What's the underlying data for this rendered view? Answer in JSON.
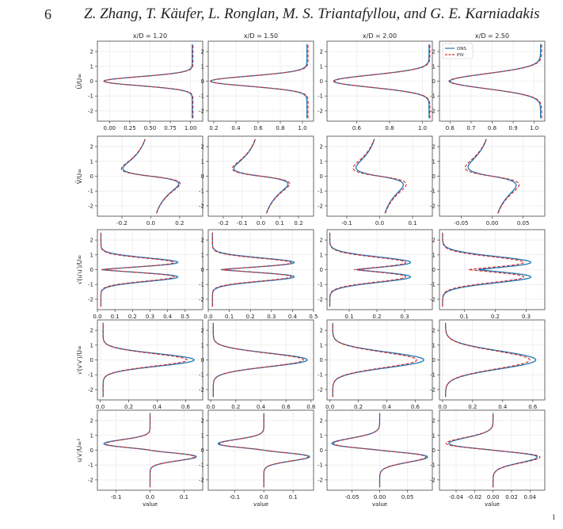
{
  "header": {
    "page_number": "6",
    "running_head": "Z. Zhang, T. Käufer, L. Ronglan, M. S. Triantafyllou, and G. E. Karniadakis",
    "corner_mark": "1"
  },
  "chart_data": {
    "type": "line",
    "layout": "5 rows x 4 columns of small-multiple line plots; the profile variable is plotted on the horizontal axis against y/D on the vertical axis",
    "column_titles": [
      "x/D = 1.20",
      "x/D = 1.50",
      "x/D = 2.00",
      "x/D = 2.50"
    ],
    "row_ylabels": [
      "Ū/U∞",
      "V̄/U∞",
      "√(u′u′)/U∞",
      "√(v′v′)/U∞",
      "u′v′/U∞²"
    ],
    "xlabel_bottom": "value",
    "ylim": [
      -2.7,
      2.7
    ],
    "yticks": [
      -2,
      -1,
      0,
      1,
      2
    ],
    "legend": {
      "panel": "row1-col4",
      "placement": "top-left",
      "entries": [
        {
          "name": "DNS",
          "color": "#1f77b4",
          "style": "solid"
        },
        {
          "name": "PIV",
          "color": "#d62728",
          "style": "dashed"
        }
      ]
    },
    "grid": true,
    "series_colors": {
      "DNS": "#1f77b4",
      "PIV": "#d62728"
    },
    "panels": [
      {
        "row": 1,
        "col": 1,
        "shape": "wake_mean_u",
        "xlim": [
          -0.15,
          1.15
        ],
        "xticks": [
          "0.00",
          "0.25",
          "0.50",
          "0.75",
          "1.00"
        ],
        "xtick_values": [
          0,
          0.25,
          0.5,
          0.75,
          1.0
        ],
        "DNS": {
          "base": 1.02,
          "amp": 1.09,
          "width": 0.3
        },
        "PIV": {
          "base": 1.03,
          "amp": 1.1,
          "width": 0.3
        }
      },
      {
        "row": 1,
        "col": 2,
        "shape": "wake_mean_u",
        "xlim": [
          0.15,
          1.1
        ],
        "xticks": [
          "0.2",
          "0.4",
          "0.6",
          "0.8",
          "1.0"
        ],
        "xtick_values": [
          0.2,
          0.4,
          0.6,
          0.8,
          1.0
        ],
        "DNS": {
          "base": 1.04,
          "amp": 0.87,
          "width": 0.34
        },
        "PIV": {
          "base": 1.05,
          "amp": 0.88,
          "width": 0.34
        }
      },
      {
        "row": 1,
        "col": 3,
        "shape": "wake_mean_u",
        "xlim": [
          0.42,
          1.06
        ],
        "xticks": [
          "0.6",
          "0.8",
          "1.0"
        ],
        "xtick_values": [
          0.6,
          0.8,
          1.0
        ],
        "DNS": {
          "base": 1.04,
          "amp": 0.58,
          "width": 0.42
        },
        "PIV": {
          "base": 1.045,
          "amp": 0.58,
          "width": 0.42
        }
      },
      {
        "row": 1,
        "col": 4,
        "shape": "wake_mean_u",
        "xlim": [
          0.55,
          1.05
        ],
        "xticks": [
          "0.6",
          "0.7",
          "0.8",
          "0.9",
          "1.0"
        ],
        "xtick_values": [
          0.6,
          0.7,
          0.8,
          0.9,
          1.0
        ],
        "DNS": {
          "base": 1.03,
          "amp": 0.43,
          "width": 0.5
        },
        "PIV": {
          "base": 1.035,
          "amp": 0.44,
          "width": 0.5
        }
      },
      {
        "row": 2,
        "col": 1,
        "shape": "mean_v",
        "xlim": [
          -0.37,
          0.36
        ],
        "xticks": [
          "-0.2",
          "0.0",
          "0.2"
        ],
        "xtick_values": [
          -0.2,
          0.0,
          0.2
        ],
        "DNS": {
          "amp": 0.33,
          "width": 0.45
        },
        "PIV": {
          "amp": 0.34,
          "width": 0.43
        }
      },
      {
        "row": 2,
        "col": 2,
        "shape": "mean_v",
        "xlim": [
          -0.28,
          0.28
        ],
        "xticks": [
          "-0.2",
          "-0.1",
          "0.0",
          "0.1",
          "0.2"
        ],
        "xtick_values": [
          -0.2,
          -0.1,
          0.0,
          0.1,
          0.2
        ],
        "DNS": {
          "amp": 0.25,
          "width": 0.47
        },
        "PIV": {
          "amp": 0.26,
          "width": 0.45
        }
      },
      {
        "row": 2,
        "col": 3,
        "shape": "mean_v",
        "xlim": [
          -0.16,
          0.16
        ],
        "xticks": [
          "-0.1",
          "0.0",
          "0.1"
        ],
        "xtick_values": [
          -0.1,
          0.0,
          0.1
        ],
        "DNS": {
          "amp": 0.135,
          "width": 0.55
        },
        "PIV": {
          "amp": 0.145,
          "width": 0.5
        }
      },
      {
        "row": 2,
        "col": 4,
        "shape": "mean_v",
        "xlim": [
          -0.085,
          0.085
        ],
        "xticks": [
          "-0.05",
          "0.00",
          "0.05"
        ],
        "xtick_values": [
          -0.05,
          0.0,
          0.05
        ],
        "DNS": {
          "amp": 0.078,
          "width": 0.62
        },
        "PIV": {
          "amp": 0.082,
          "width": 0.55
        }
      },
      {
        "row": 3,
        "col": 1,
        "shape": "rms_u",
        "xlim": [
          0.0,
          0.6
        ],
        "xticks": [
          "0.0",
          "0.1",
          "0.2",
          "0.3",
          "0.4",
          "0.5"
        ],
        "xtick_values": [
          0,
          0.1,
          0.2,
          0.3,
          0.4,
          0.5
        ],
        "DNS": {
          "base": 0.02,
          "peak": 0.53,
          "center": 0.3,
          "dip": 0.23,
          "width": 0.5
        },
        "PIV": {
          "base": 0.02,
          "peak": 0.5,
          "center": 0.3,
          "dip": 0.2,
          "width": 0.48
        }
      },
      {
        "row": 3,
        "col": 2,
        "shape": "rms_u",
        "xlim": [
          0.0,
          0.5
        ],
        "xticks": [
          "0.0",
          "0.1",
          "0.2",
          "0.3",
          "0.4",
          "0.5"
        ],
        "xtick_values": [
          0,
          0.1,
          0.2,
          0.3,
          0.4,
          0.5
        ],
        "DNS": {
          "base": 0.02,
          "peak": 0.46,
          "center": 0.3,
          "dip": 0.16,
          "width": 0.5
        },
        "PIV": {
          "base": 0.02,
          "peak": 0.44,
          "center": 0.3,
          "dip": 0.14,
          "width": 0.48
        }
      },
      {
        "row": 3,
        "col": 3,
        "shape": "rms_u",
        "xlim": [
          0.02,
          0.4
        ],
        "xticks": [
          "0.1",
          "0.2",
          "0.3"
        ],
        "xtick_values": [
          0.1,
          0.2,
          0.3
        ],
        "DNS": {
          "base": 0.03,
          "peak": 0.35,
          "center": 0.26,
          "dip": 0.09,
          "width": 0.6
        },
        "PIV": {
          "base": 0.03,
          "peak": 0.33,
          "center": 0.25,
          "dip": 0.08,
          "width": 0.58
        }
      },
      {
        "row": 3,
        "col": 4,
        "shape": "rms_u",
        "xlim": [
          0.02,
          0.36
        ],
        "xticks": [
          "0.1",
          "0.2",
          "0.3"
        ],
        "xtick_values": [
          0.1,
          0.2,
          0.3
        ],
        "DNS": {
          "base": 0.03,
          "peak": 0.34,
          "center": 0.26,
          "dip": 0.08,
          "width": 0.65
        },
        "PIV": {
          "base": 0.03,
          "peak": 0.32,
          "center": 0.23,
          "dip": 0.09,
          "width": 0.62
        }
      },
      {
        "row": 4,
        "col": 1,
        "shape": "rms_v",
        "xlim": [
          -0.02,
          0.72
        ],
        "xticks": [
          "0.0",
          "0.2",
          "0.4",
          "0.6"
        ],
        "xtick_values": [
          0,
          0.2,
          0.4,
          0.6
        ],
        "DNS": {
          "base": 0.02,
          "peak": 0.66,
          "width": 0.42
        },
        "PIV": {
          "base": 0.02,
          "peak": 0.61,
          "width": 0.42
        }
      },
      {
        "row": 4,
        "col": 2,
        "shape": "rms_v",
        "xlim": [
          -0.02,
          0.82
        ],
        "xticks": [
          "0.0",
          "0.2",
          "0.4",
          "0.6",
          "0.8"
        ],
        "xtick_values": [
          0,
          0.2,
          0.4,
          0.6,
          0.8
        ],
        "DNS": {
          "base": 0.02,
          "peak": 0.77,
          "width": 0.45
        },
        "PIV": {
          "base": 0.02,
          "peak": 0.74,
          "width": 0.45
        }
      },
      {
        "row": 4,
        "col": 3,
        "shape": "rms_v",
        "xlim": [
          -0.02,
          0.72
        ],
        "xticks": [
          "0.0",
          "0.2",
          "0.4",
          "0.6"
        ],
        "xtick_values": [
          0,
          0.2,
          0.4,
          0.6
        ],
        "DNS": {
          "base": 0.02,
          "peak": 0.66,
          "width": 0.52
        },
        "PIV": {
          "base": 0.02,
          "peak": 0.61,
          "width": 0.52
        }
      },
      {
        "row": 4,
        "col": 4,
        "shape": "rms_v",
        "xlim": [
          -0.02,
          0.68
        ],
        "xticks": [
          "0.0",
          "0.2",
          "0.4",
          "0.6"
        ],
        "xtick_values": [
          0,
          0.2,
          0.4,
          0.6
        ],
        "DNS": {
          "base": 0.02,
          "peak": 0.62,
          "width": 0.6
        },
        "PIV": {
          "base": 0.02,
          "peak": 0.58,
          "width": 0.6
        }
      },
      {
        "row": 5,
        "col": 1,
        "shape": "reynolds_shear",
        "xlim": [
          -0.155,
          0.155
        ],
        "xticks": [
          "-0.1",
          "0.0",
          "0.1"
        ],
        "xtick_values": [
          -0.1,
          0.0,
          0.1
        ],
        "DNS": {
          "amp": 0.135,
          "width": 0.38
        },
        "PIV": {
          "amp": 0.13,
          "width": 0.38
        }
      },
      {
        "row": 5,
        "col": 2,
        "shape": "reynolds_shear",
        "xlim": [
          -0.19,
          0.17
        ],
        "xticks": [
          "-0.1",
          "0.0",
          "0.1"
        ],
        "xtick_values": [
          -0.1,
          0.0,
          0.1
        ],
        "DNS": {
          "amp": 0.155,
          "width": 0.4
        },
        "PIV": {
          "amp": 0.15,
          "width": 0.4
        }
      },
      {
        "row": 5,
        "col": 3,
        "shape": "reynolds_shear",
        "xlim": [
          -0.095,
          0.095
        ],
        "xticks": [
          "-0.05",
          "0.00",
          "0.05"
        ],
        "xtick_values": [
          -0.05,
          0.0,
          0.05
        ],
        "DNS": {
          "amp": 0.085,
          "width": 0.5
        },
        "PIV": {
          "amp": 0.082,
          "width": 0.5
        }
      },
      {
        "row": 5,
        "col": 4,
        "shape": "reynolds_shear",
        "xlim": [
          -0.058,
          0.056
        ],
        "xticks": [
          "-0.04",
          "-0.02",
          "0.00",
          "0.02",
          "0.04"
        ],
        "xtick_values": [
          -0.04,
          -0.02,
          0.0,
          0.02,
          0.04
        ],
        "DNS": {
          "amp": 0.047,
          "width": 0.55
        },
        "PIV": {
          "amp": 0.05,
          "width": 0.55
        }
      }
    ]
  }
}
